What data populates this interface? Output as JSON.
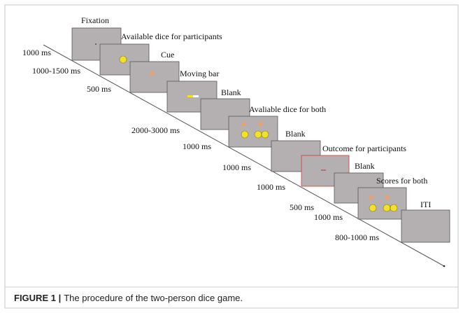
{
  "screens": [
    {
      "label": "Fixation"
    },
    {
      "label": "Available dice for participants"
    },
    {
      "label": "Cue"
    },
    {
      "label": "Moving bar"
    },
    {
      "label": "Blank"
    },
    {
      "label": "Avaliable dice for both"
    },
    {
      "label": "Blank"
    },
    {
      "label": "Outcome for participants"
    },
    {
      "label": "Blank"
    },
    {
      "label": "Scores for both"
    },
    {
      "label": "ITI"
    }
  ],
  "durations": [
    "1000 ms",
    "1000-1500 ms",
    "500 ms",
    "2000-3000 ms",
    "1000 ms",
    "1000 ms",
    "1000 ms",
    "500 ms",
    "1000 ms",
    "800-1000 ms"
  ],
  "caption": {
    "label": "FIGURE 1 |",
    "text": "The procedure of the two-person dice game."
  }
}
